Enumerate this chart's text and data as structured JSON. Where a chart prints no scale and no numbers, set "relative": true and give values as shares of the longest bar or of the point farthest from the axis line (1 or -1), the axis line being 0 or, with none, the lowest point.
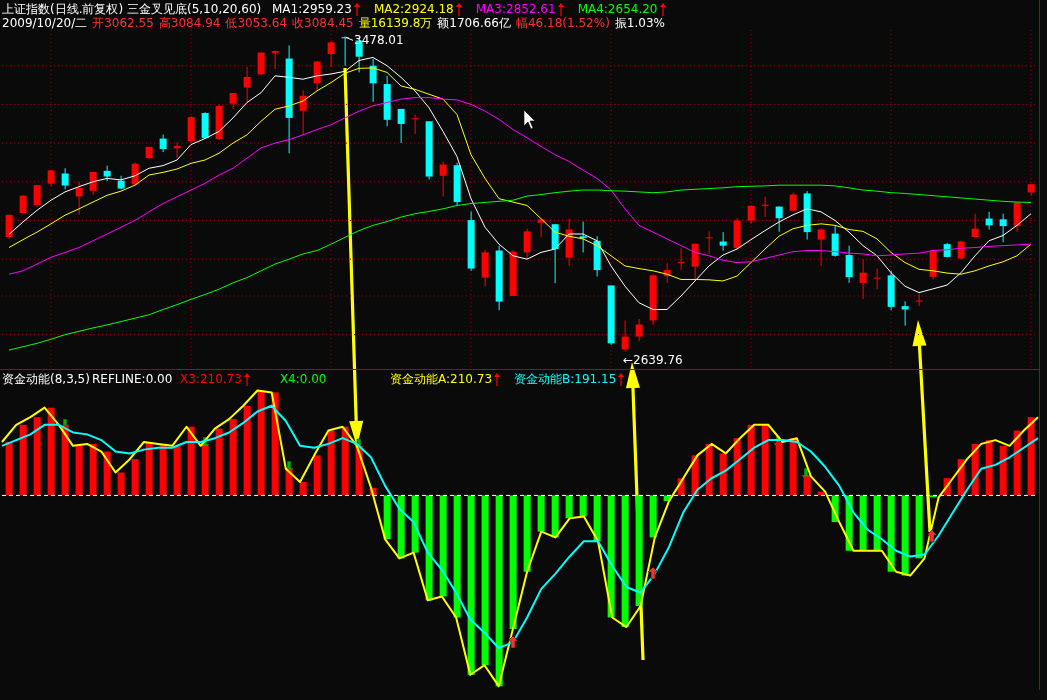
{
  "chart_data": [
    {
      "type": "candlestick",
      "title": "上证指数(日线.前复权) 三金叉见底(5,10,20,60)",
      "annotations": [
        "2009/10/20/二",
        "开3062.55",
        "高3084.94",
        "低3053.64",
        "收3084.45",
        "量16139.8万",
        "额1706.66亿",
        "幅46.18(1.52%)",
        "振1.03%",
        "3478.01",
        "←2639.76"
      ],
      "categories": [
        null,
        null,
        null,
        null,
        null,
        null,
        null,
        null,
        null,
        null,
        null,
        null,
        null,
        null,
        null,
        null,
        null,
        null,
        null,
        null,
        null,
        null,
        null,
        null,
        null,
        null,
        null,
        null,
        null,
        null,
        null,
        null,
        null,
        null,
        null,
        null,
        null,
        null,
        null,
        null,
        null,
        null,
        null,
        null,
        null,
        null,
        null,
        null,
        null,
        null,
        null,
        null,
        null,
        null,
        null,
        null,
        null,
        null,
        null,
        null,
        null,
        null,
        null,
        null,
        null,
        null,
        null,
        null,
        null,
        null,
        null,
        null,
        null,
        null
      ],
      "ohlc": [
        [
          2944,
          3003,
          2939,
          3003
        ],
        [
          3008,
          3055,
          3006,
          3054
        ],
        [
          3029,
          3082,
          3024,
          3082
        ],
        [
          3086,
          3122,
          3080,
          3121
        ],
        [
          3113,
          3127,
          3071,
          3081
        ],
        [
          3052,
          3091,
          3003,
          3075
        ],
        [
          3067,
          3117,
          3057,
          3117
        ],
        [
          3120,
          3134,
          3093,
          3105
        ],
        [
          3094,
          3107,
          3071,
          3073
        ],
        [
          3084,
          3142,
          3082,
          3139
        ],
        [
          3154,
          3184,
          3151,
          3184
        ],
        [
          3206,
          3217,
          3170,
          3178
        ],
        [
          3180,
          3196,
          3154,
          3186
        ],
        [
          3199,
          3266,
          3194,
          3263
        ],
        [
          3274,
          3276,
          3206,
          3207
        ],
        [
          3205,
          3297,
          3202,
          3293
        ],
        [
          3299,
          3327,
          3285,
          3327
        ],
        [
          3342,
          3397,
          3302,
          3370
        ],
        [
          3377,
          3435,
          3375,
          3435
        ],
        [
          3434,
          3440,
          3391,
          3439
        ],
        [
          3419,
          3454,
          3167,
          3261
        ],
        [
          3280,
          3335,
          3215,
          3320
        ],
        [
          3353,
          3413,
          3333,
          3411
        ],
        [
          3431,
          3467,
          3396,
          3462
        ],
        [
          3476,
          3478.01,
          3400,
          3473
        ],
        [
          3467,
          3472,
          3382,
          3424
        ],
        [
          3400,
          3418,
          3304,
          3353
        ],
        [
          3351,
          3373,
          3239,
          3256
        ],
        [
          3285,
          3285,
          3194,
          3245
        ],
        [
          3258,
          3270,
          3218,
          3260
        ],
        [
          3252,
          3252,
          3097,
          3105
        ],
        [
          3107,
          3145,
          3052,
          3137
        ],
        [
          3135,
          3142,
          3028,
          3037
        ],
        [
          2989,
          3012,
          2854,
          2860
        ],
        [
          2836,
          2910,
          2813,
          2903
        ],
        [
          2908,
          2921,
          2749,
          2772
        ],
        [
          2787,
          2908,
          2787,
          2905
        ],
        [
          2903,
          2966,
          2885,
          2959
        ],
        [
          2982,
          2993,
          2943,
          2991
        ],
        [
          2978,
          2978,
          2821,
          2912
        ],
        [
          2889,
          2993,
          2867,
          2964
        ],
        [
          2946,
          2985,
          2903,
          2941
        ],
        [
          2934,
          2946,
          2839,
          2856
        ],
        [
          2815,
          2815,
          2657,
          2661
        ],
        [
          2645,
          2722,
          2639.76,
          2679
        ],
        [
          2679,
          2726,
          2666,
          2711
        ],
        [
          2722,
          2845,
          2710,
          2842
        ],
        [
          2840,
          2874,
          2822,
          2856
        ],
        [
          2876,
          2914,
          2856,
          2878
        ],
        [
          2865,
          2926,
          2830,
          2926
        ],
        [
          2942,
          2959,
          2899,
          2943
        ],
        [
          2932,
          2957,
          2908,
          2921
        ],
        [
          2915,
          2994,
          2912,
          2988
        ],
        [
          2988,
          3028,
          2979,
          3027
        ],
        [
          3027,
          3051,
          2997,
          3030
        ],
        [
          3025,
          3025,
          2958,
          2994
        ],
        [
          3014,
          3062,
          3012,
          3057
        ],
        [
          3060,
          3066,
          2937,
          2957
        ],
        [
          2937,
          2966,
          2867,
          2964
        ],
        [
          2953,
          2976,
          2892,
          2894
        ],
        [
          2896,
          2921,
          2822,
          2837
        ],
        [
          2822,
          2885,
          2779,
          2849
        ],
        [
          2834,
          2860,
          2805,
          2836
        ],
        [
          2842,
          2854,
          2749,
          2758
        ],
        [
          2760,
          2773,
          2708,
          2751
        ],
        [
          2773,
          2793,
          2760,
          2775
        ],
        [
          2838,
          2908,
          2830,
          2908
        ],
        [
          2925,
          2928,
          2890,
          2891
        ],
        [
          2887,
          2934,
          2883,
          2932
        ],
        [
          2944,
          3006,
          2941,
          2966
        ],
        [
          2993,
          3011,
          2964,
          2975
        ],
        [
          2991,
          3006,
          2930,
          2973
        ],
        [
          2973,
          3037,
          2958,
          3036
        ],
        [
          3062.55,
          3084.94,
          3053.64,
          3084.45
        ]
      ],
      "colors": [
        "#ff0000",
        "#ff0000",
        "#ff0000",
        "#ff0000",
        "#00ffff",
        "#ff0000",
        "#ff0000",
        "#00ffff",
        "#00ffff",
        "#ff0000",
        "#ff0000",
        "#00ffff",
        "#ff0000",
        "#ff0000",
        "#00ffff",
        "#ff0000",
        "#ff0000",
        "#ff0000",
        "#ff0000",
        "#ff0000",
        "#00ffff",
        "#ff0000",
        "#ff0000",
        "#ff0000",
        "#00ffff",
        "#00ffff",
        "#00ffff",
        "#00ffff",
        "#00ffff",
        "#ff0000",
        "#00ffff",
        "#ff0000",
        "#00ffff",
        "#00ffff",
        "#ff0000",
        "#00ffff",
        "#ff0000",
        "#ff0000",
        "#ff0000",
        "#00ffff",
        "#ff0000",
        "#00ffff",
        "#00ffff",
        "#00ffff",
        "#ff0000",
        "#ff0000",
        "#ff0000",
        "#ff0000",
        "#ff0000",
        "#ff0000",
        "#ff0000",
        "#00ffff",
        "#ff0000",
        "#ff0000",
        "#ff0000",
        "#00ffff",
        "#ff0000",
        "#00ffff",
        "#ff0000",
        "#00ffff",
        "#00ffff",
        "#ff0000",
        "#ff0000",
        "#00ffff",
        "#00ffff",
        "#ff0000",
        "#ff0000",
        "#00ffff",
        "#ff0000",
        "#ff0000",
        "#00ffff",
        "#00ffff",
        "#ff0000",
        "#ff0000"
      ],
      "series": [
        {
          "type": "line",
          "name": "MA1:2959.23",
          "color": "#ffffff",
          "values": [
            2951,
            2984,
            3015,
            3042,
            3064,
            3078,
            3091,
            3100,
            3096,
            3107,
            3127,
            3134,
            3149,
            3190,
            3206,
            3225,
            3261,
            3302,
            3328,
            3373,
            3369,
            3364,
            3373,
            3378,
            3385,
            3414,
            3422,
            3400,
            3369,
            3333,
            3288,
            3225,
            3158,
            3046,
            2970,
            2925,
            2894,
            2885,
            2903,
            2912,
            2952,
            2952,
            2934,
            2867,
            2813,
            2769,
            2751,
            2751,
            2787,
            2827,
            2867,
            2896,
            2912,
            2937,
            2961,
            2984,
            3003,
            3019,
            3011,
            2988,
            2957,
            2921,
            2894,
            2849,
            2813,
            2796,
            2806,
            2816,
            2849,
            2894,
            2934,
            2948,
            2975,
            3006
          ]
        },
        {
          "type": "line",
          "name": "MA2:2924.18",
          "color": "#ffff00",
          "values": [
            2916,
            2937,
            2957,
            2979,
            3002,
            3019,
            3037,
            3055,
            3066,
            3082,
            3109,
            3116,
            3125,
            3140,
            3149,
            3167,
            3194,
            3216,
            3252,
            3284,
            3293,
            3306,
            3333,
            3355,
            3380,
            3393,
            3394,
            3382,
            3346,
            3337,
            3324,
            3311,
            3270,
            3163,
            3100,
            3046,
            3037,
            3028,
            2993,
            2957,
            2946,
            2939,
            2921,
            2894,
            2867,
            2860,
            2854,
            2845,
            2831,
            2831,
            2830,
            2827,
            2840,
            2876,
            2912,
            2946,
            2966,
            2975,
            2979,
            2975,
            2964,
            2959,
            2939,
            2903,
            2876,
            2858,
            2854,
            2848,
            2845,
            2854,
            2867,
            2878,
            2894,
            2925
          ]
        },
        {
          "type": "line",
          "name": "MA3:2852.61",
          "color": "#ff00ff",
          "values": [
            2845,
            2854,
            2872,
            2890,
            2903,
            2916,
            2934,
            2952,
            2970,
            2988,
            3011,
            3033,
            3051,
            3069,
            3087,
            3109,
            3127,
            3154,
            3181,
            3194,
            3203,
            3216,
            3230,
            3243,
            3261,
            3279,
            3293,
            3302,
            3311,
            3315,
            3315,
            3311,
            3309,
            3297,
            3279,
            3257,
            3230,
            3208,
            3185,
            3163,
            3145,
            3122,
            3100,
            3069,
            3019,
            2975,
            2957,
            2939,
            2921,
            2903,
            2894,
            2882,
            2876,
            2878,
            2887,
            2896,
            2905,
            2908,
            2908,
            2905,
            2901,
            2899,
            2894,
            2896,
            2899,
            2901,
            2908,
            2910,
            2914,
            2916,
            2919,
            2921,
            2923,
            2925
          ]
        },
        {
          "type": "line",
          "name": "MA4:2654.20",
          "color": "#00ff00",
          "values": [
            2643,
            2652,
            2661,
            2672,
            2684,
            2693,
            2702,
            2710,
            2719,
            2728,
            2737,
            2751,
            2764,
            2778,
            2791,
            2805,
            2822,
            2836,
            2854,
            2872,
            2885,
            2899,
            2908,
            2925,
            2943,
            2961,
            2975,
            2985,
            2997,
            3006,
            3012,
            3019,
            3028,
            3033,
            3036,
            3039,
            3042,
            3053,
            3057,
            3062,
            3066,
            3069,
            3069,
            3067,
            3066,
            3064,
            3062,
            3064,
            3069,
            3071,
            3073,
            3075,
            3078,
            3079,
            3080,
            3082,
            3082,
            3082,
            3082,
            3080,
            3075,
            3069,
            3066,
            3062,
            3060,
            3057,
            3054,
            3051,
            3048,
            3045,
            3042,
            3039,
            3037,
            3036
          ]
        }
      ],
      "ylim": [
        2590,
        3495
      ],
      "yticks": [
        {
          "value": 2684,
          "label": null
        },
        {
          "value": 2787,
          "label": null
        },
        {
          "value": 2885,
          "label": null
        },
        {
          "value": 2988,
          "label": null
        },
        {
          "value": 3091,
          "label": null
        },
        {
          "value": 3194,
          "label": null
        },
        {
          "value": 3297,
          "label": null
        },
        {
          "value": 3400,
          "label": null
        }
      ],
      "grid": true,
      "legend": "top left"
    },
    {
      "type": "bar",
      "title": "资金动能(8,3,5)",
      "relative": true,
      "stacked": true,
      "legend": "top left",
      "categories": [
        null,
        null,
        null,
        null,
        null,
        null,
        null,
        null,
        null,
        null,
        null,
        null,
        null,
        null,
        null,
        null,
        null,
        null,
        null,
        null,
        null,
        null,
        null,
        null,
        null,
        null,
        null,
        null,
        null,
        null,
        null,
        null,
        null,
        null,
        null,
        null,
        null,
        null,
        null,
        null,
        null,
        null,
        null,
        null,
        null,
        null,
        null,
        null,
        null,
        null,
        null,
        null,
        null,
        null,
        null,
        null,
        null,
        null,
        null,
        null,
        null,
        null,
        null,
        null,
        null,
        null,
        null,
        null,
        null,
        null,
        null,
        null,
        null,
        null
      ],
      "series": [
        {
          "name": "X3:210.73",
          "color": "#ff0000",
          "values": [
            0.28,
            0.37,
            0.41,
            0.46,
            0.37,
            0.26,
            0.27,
            0.23,
            0.12,
            0.19,
            0.28,
            0.27,
            0.26,
            0.36,
            0.26,
            0.35,
            0.4,
            0.47,
            0.55,
            0.54,
            0.14,
            0.07,
            0.21,
            0.34,
            0.36,
            0.26,
            0.04,
            0,
            0,
            0,
            0,
            0,
            0,
            0,
            0,
            0,
            0,
            0,
            0,
            0,
            0,
            0,
            0,
            0,
            0,
            0,
            0,
            0,
            0.09,
            0.21,
            0.27,
            0.22,
            0.3,
            0.37,
            0.37,
            0.28,
            0.3,
            0.1,
            0.02,
            0,
            0,
            0,
            0,
            0,
            0,
            0,
            0,
            0.09,
            0.19,
            0.27,
            0.29,
            0.26,
            0.34,
            0.41
          ]
        },
        {
          "name": "X4:0.00",
          "color": "#00ff00",
          "values": [
            0,
            0,
            0,
            0,
            0,
            0,
            0,
            0,
            0,
            0,
            0,
            0,
            0,
            0,
            0,
            0,
            0,
            0,
            0,
            0,
            0,
            0,
            0,
            0,
            0,
            0,
            0,
            -0.23,
            -0.33,
            -0.3,
            -0.55,
            -0.53,
            -0.64,
            -0.94,
            -0.89,
            -1,
            -0.7,
            -0.4,
            -0.19,
            -0.22,
            -0.12,
            -0.11,
            -0.24,
            -0.64,
            -0.69,
            -0.58,
            -0.22,
            -0.03,
            0,
            0,
            0,
            0,
            0,
            0,
            0,
            0,
            0,
            0,
            0,
            -0.14,
            -0.29,
            -0.29,
            -0.29,
            -0.4,
            -0.42,
            -0.33,
            -0.01,
            0,
            0,
            0,
            0,
            0,
            0,
            0
          ]
        }
      ]
    },
    {
      "type": "line",
      "relative": true,
      "legend": "top",
      "categories": [
        null,
        null,
        null,
        null,
        null,
        null,
        null,
        null,
        null,
        null,
        null,
        null,
        null,
        null,
        null,
        null,
        null,
        null,
        null,
        null,
        null,
        null,
        null,
        null,
        null,
        null,
        null,
        null,
        null,
        null,
        null,
        null,
        null,
        null,
        null,
        null,
        null,
        null,
        null,
        null,
        null,
        null,
        null,
        null,
        null,
        null,
        null,
        null,
        null,
        null,
        null,
        null,
        null,
        null,
        null,
        null,
        null,
        null,
        null,
        null,
        null,
        null,
        null,
        null,
        null,
        null,
        null,
        null,
        null,
        null,
        null,
        null,
        null,
        null
      ],
      "series": [
        {
          "type": "line",
          "name": "资金动能A:210.73",
          "color": "#ffff00",
          "values": [
            0.28,
            0.37,
            0.41,
            0.46,
            0.37,
            0.26,
            0.27,
            0.23,
            0.12,
            0.19,
            0.28,
            0.27,
            0.26,
            0.36,
            0.26,
            0.35,
            0.4,
            0.47,
            0.55,
            0.54,
            0.14,
            0.07,
            0.21,
            0.34,
            0.36,
            0.26,
            0.04,
            -0.23,
            -0.33,
            -0.3,
            -0.55,
            -0.53,
            -0.64,
            -0.94,
            -0.89,
            -1,
            -0.7,
            -0.4,
            -0.19,
            -0.22,
            -0.12,
            -0.11,
            -0.24,
            -0.64,
            -0.69,
            -0.58,
            -0.22,
            -0.03,
            0.09,
            0.21,
            0.27,
            0.22,
            0.3,
            0.37,
            0.37,
            0.28,
            0.3,
            0.1,
            0.02,
            -0.14,
            -0.29,
            -0.29,
            -0.29,
            -0.4,
            -0.42,
            -0.33,
            -0.01,
            0.09,
            0.19,
            0.27,
            0.29,
            0.26,
            0.34,
            0.41
          ]
        },
        {
          "type": "line",
          "name": "资金动能B:191.15",
          "color": "#00ffff",
          "values": [
            0.26,
            0.29,
            0.32,
            0.37,
            0.37,
            0.33,
            0.32,
            0.29,
            0.23,
            0.22,
            0.24,
            0.25,
            0.25,
            0.28,
            0.28,
            0.3,
            0.33,
            0.38,
            0.44,
            0.47,
            0.39,
            0.26,
            0.25,
            0.27,
            0.3,
            0.27,
            0.2,
            0.05,
            -0.07,
            -0.14,
            -0.3,
            -0.39,
            -0.51,
            -0.65,
            -0.72,
            -0.8,
            -0.77,
            -0.64,
            -0.49,
            -0.41,
            -0.32,
            -0.24,
            -0.24,
            -0.37,
            -0.48,
            -0.51,
            -0.41,
            -0.27,
            -0.09,
            0.03,
            0.09,
            0.13,
            0.19,
            0.25,
            0.29,
            0.29,
            0.28,
            0.23,
            0.15,
            0.05,
            -0.09,
            -0.18,
            -0.23,
            -0.29,
            -0.32,
            -0.31,
            -0.21,
            -0.09,
            0.03,
            0.14,
            0.16,
            0.2,
            0.25,
            0.3
          ]
        }
      ],
      "ref_lines": [
        {
          "axis": "y",
          "value": 0,
          "label": "REFLINE:0.00",
          "color": "#ffffff",
          "line_style": "dashed"
        }
      ],
      "line_style": "solid"
    }
  ]
}
